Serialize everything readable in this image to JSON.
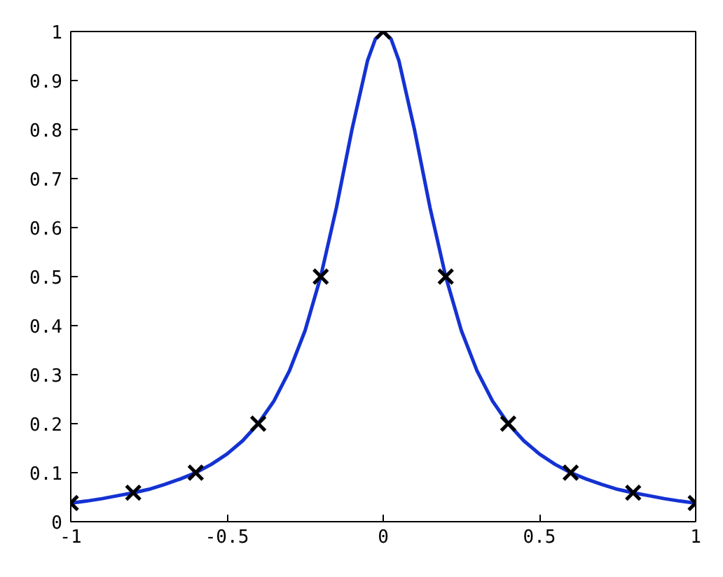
{
  "chart_data": {
    "type": "line",
    "xlim": [
      -1,
      1
    ],
    "xticks": [
      -1,
      -0.5,
      0,
      0.5,
      1
    ],
    "ylim": [
      0,
      1
    ],
    "yticks": [
      0,
      0.1,
      0.2,
      0.3,
      0.4,
      0.5,
      0.6,
      0.7,
      0.8,
      0.9,
      1
    ],
    "grid": false,
    "series": [
      {
        "color": "#1432d2",
        "line_style": "solid",
        "x": [
          -1,
          -0.95,
          -0.9,
          -0.85,
          -0.8,
          -0.75,
          -0.7,
          -0.65,
          -0.6,
          -0.55,
          -0.5,
          -0.45,
          -0.4,
          -0.35,
          -0.3,
          -0.25,
          -0.2,
          -0.15,
          -0.1,
          -0.05,
          -0.025,
          0,
          0.025,
          0.05,
          0.1,
          0.15,
          0.2,
          0.25,
          0.3,
          0.35,
          0.4,
          0.45,
          0.5,
          0.55,
          0.6,
          0.65,
          0.7,
          0.75,
          0.8,
          0.85,
          0.9,
          0.95,
          1
        ],
        "values": [
          0.038,
          0.042,
          0.047,
          0.053,
          0.059,
          0.066,
          0.076,
          0.087,
          0.1,
          0.117,
          0.138,
          0.165,
          0.2,
          0.246,
          0.308,
          0.39,
          0.5,
          0.64,
          0.8,
          0.941,
          0.985,
          1,
          0.985,
          0.941,
          0.8,
          0.64,
          0.5,
          0.39,
          0.308,
          0.246,
          0.2,
          0.165,
          0.138,
          0.117,
          0.1,
          0.087,
          0.076,
          0.066,
          0.059,
          0.053,
          0.047,
          0.042,
          0.038
        ]
      },
      {
        "type": "scatter",
        "color": "#000000",
        "marker": "cross",
        "x": [
          -1,
          -0.8,
          -0.6,
          -0.4,
          -0.2,
          0,
          0.2,
          0.4,
          0.6,
          0.8,
          1
        ],
        "values": [
          0.038,
          0.059,
          0.1,
          0.2,
          0.5,
          1,
          0.5,
          0.2,
          0.1,
          0.059,
          0.038
        ]
      }
    ]
  }
}
